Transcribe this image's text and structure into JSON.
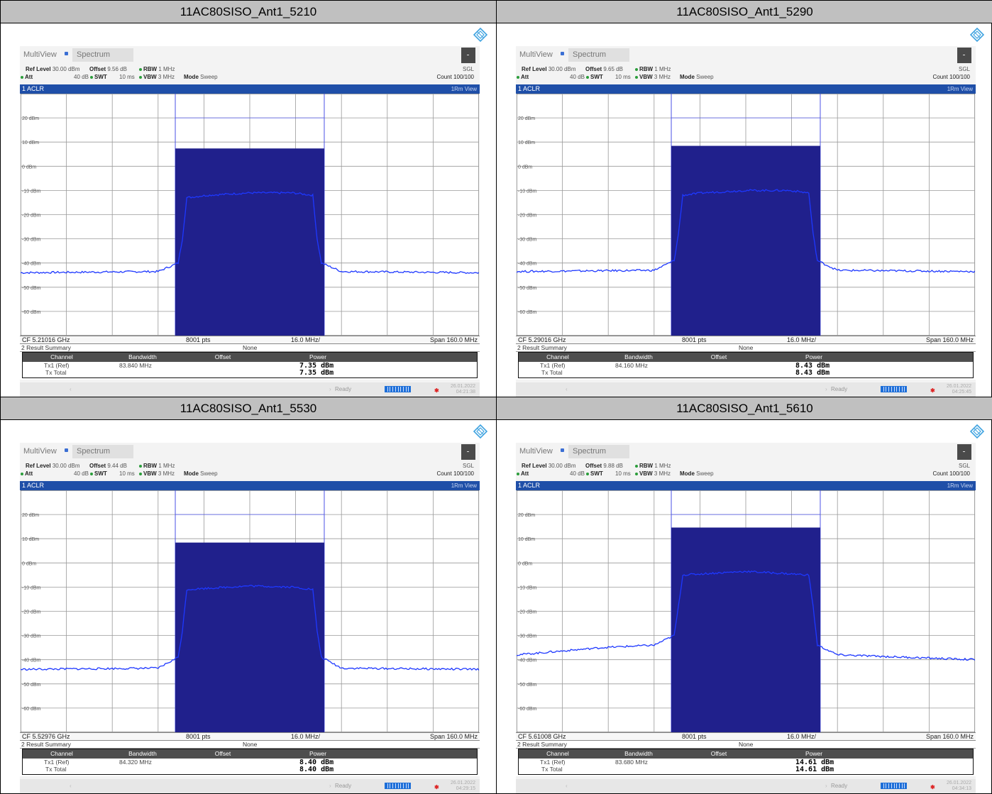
{
  "panels": [
    {
      "title": "11AC80SISO_Ant1_5210",
      "app": {
        "multiview": "MultiView",
        "tab": "Spectrum"
      },
      "settings": {
        "ref_level_label": "Ref Level",
        "ref_level": "30.00 dBm",
        "offset_label": "Offset",
        "offset": "9.56 dB",
        "rbw_label": "RBW",
        "rbw": "1 MHz",
        "att_label": "Att",
        "att": "40 dB",
        "swt_label": "SWT",
        "swt": "10 ms",
        "vbw_label": "VBW",
        "vbw": "3 MHz",
        "mode_label": "Mode",
        "mode": "Sweep",
        "sgl": "SGL",
        "count": "Count 100/100"
      },
      "window": {
        "name": "1 ACLR",
        "view": "1Rm View"
      },
      "axis": {
        "cf": "CF 5.21016 GHz",
        "pts": "8001 pts",
        "div": "16.0 MHz/",
        "span": "Span 160.0 MHz"
      },
      "summary": {
        "title": "2 Result Summary",
        "none": "None",
        "headers": [
          "Channel",
          "Bandwidth",
          "Offset",
          "Power"
        ],
        "rows": [
          {
            "channel": "Tx1 (Ref)",
            "bandwidth": "83.840 MHz",
            "power": "7.35 dBm"
          },
          {
            "channel": "Tx Total",
            "bandwidth": "",
            "power": "7.35 dBm"
          }
        ]
      },
      "status": {
        "ready": "Ready",
        "date": "26.01.2022",
        "time": "04:21:38"
      },
      "chart_data": {
        "type": "line",
        "ylabels": [
          "20 dBm",
          "10 dBm",
          "0 dBm",
          "-10 dBm",
          "-20 dBm",
          "-30 dBm",
          "-40 dBm",
          "-50 dBm",
          "-60 dBm"
        ],
        "ylim": [
          -70,
          30
        ],
        "channel_power_dbm": 7.35,
        "series": [
          {
            "x_mhz": [
              -80,
              -32,
              -25,
              -23.5,
              -22,
              -15,
              0,
              15,
              22,
              23.5,
              25,
              32,
              80
            ],
            "y_dbm": [
              -44,
              -43.5,
              -40,
              -30,
              -13,
              -12,
              -11,
              -11,
              -12,
              -30,
              -40,
              -43.5,
              -44
            ]
          }
        ]
      }
    },
    {
      "title": "11AC80SISO_Ant1_5290",
      "app": {
        "multiview": "MultiView",
        "tab": "Spectrum"
      },
      "settings": {
        "ref_level_label": "Ref Level",
        "ref_level": "30.00 dBm",
        "offset_label": "Offset",
        "offset": "9.65 dB",
        "rbw_label": "RBW",
        "rbw": "1 MHz",
        "att_label": "Att",
        "att": "40 dB",
        "swt_label": "SWT",
        "swt": "10 ms",
        "vbw_label": "VBW",
        "vbw": "3 MHz",
        "mode_label": "Mode",
        "mode": "Sweep",
        "sgl": "SGL",
        "count": "Count 100/100"
      },
      "window": {
        "name": "1 ACLR",
        "view": "1Rm View"
      },
      "axis": {
        "cf": "CF 5.29016 GHz",
        "pts": "8001 pts",
        "div": "16.0 MHz/",
        "span": "Span 160.0 MHz"
      },
      "summary": {
        "title": "2 Result Summary",
        "none": "None",
        "headers": [
          "Channel",
          "Bandwidth",
          "Offset",
          "Power"
        ],
        "rows": [
          {
            "channel": "Tx1 (Ref)",
            "bandwidth": "84.160 MHz",
            "power": "8.43 dBm"
          },
          {
            "channel": "Tx Total",
            "bandwidth": "",
            "power": "8.43 dBm"
          }
        ]
      },
      "status": {
        "ready": "Ready",
        "date": "26.01.2022",
        "time": "04:25:45"
      },
      "chart_data": {
        "type": "line",
        "ylabels": [
          "20 dBm",
          "10 dBm",
          "0 dBm",
          "-10 dBm",
          "-20 dBm",
          "-30 dBm",
          "-40 dBm",
          "-50 dBm",
          "-60 dBm"
        ],
        "ylim": [
          -70,
          30
        ],
        "channel_power_dbm": 8.43,
        "series": [
          {
            "x_mhz": [
              -80,
              -32,
              -25,
              -23.5,
              -22,
              -15,
              0,
              15,
              22,
              23.5,
              25,
              32,
              80
            ],
            "y_dbm": [
              -43.5,
              -43,
              -39,
              -28,
              -12,
              -11,
              -10,
              -10,
              -11,
              -28,
              -39,
              -43,
              -43.5
            ]
          }
        ]
      }
    },
    {
      "title": "11AC80SISO_Ant1_5530",
      "app": {
        "multiview": "MultiView",
        "tab": "Spectrum"
      },
      "settings": {
        "ref_level_label": "Ref Level",
        "ref_level": "30.00 dBm",
        "offset_label": "Offset",
        "offset": "9.44 dB",
        "rbw_label": "RBW",
        "rbw": "1 MHz",
        "att_label": "Att",
        "att": "40 dB",
        "swt_label": "SWT",
        "swt": "10 ms",
        "vbw_label": "VBW",
        "vbw": "3 MHz",
        "mode_label": "Mode",
        "mode": "Sweep",
        "sgl": "SGL",
        "count": "Count 100/100"
      },
      "window": {
        "name": "1 ACLR",
        "view": "1Rm View"
      },
      "axis": {
        "cf": "CF 5.52976 GHz",
        "pts": "8001 pts",
        "div": "16.0 MHz/",
        "span": "Span 160.0 MHz"
      },
      "summary": {
        "title": "2 Result Summary",
        "none": "None",
        "headers": [
          "Channel",
          "Bandwidth",
          "Offset",
          "Power"
        ],
        "rows": [
          {
            "channel": "Tx1 (Ref)",
            "bandwidth": "84.320 MHz",
            "power": "8.40 dBm"
          },
          {
            "channel": "Tx Total",
            "bandwidth": "",
            "power": "8.40 dBm"
          }
        ]
      },
      "status": {
        "ready": "Ready",
        "date": "26.01.2022",
        "time": "04:29:15"
      },
      "chart_data": {
        "type": "line",
        "ylabels": [
          "20 dBm",
          "10 dBm",
          "0 dBm",
          "-10 dBm",
          "-20 dBm",
          "-30 dBm",
          "-40 dBm",
          "-50 dBm",
          "-60 dBm"
        ],
        "ylim": [
          -70,
          30
        ],
        "channel_power_dbm": 8.4,
        "series": [
          {
            "x_mhz": [
              -80,
              -32,
              -25,
              -23.5,
              -22,
              -15,
              0,
              15,
              22,
              23.5,
              25,
              32,
              80
            ],
            "y_dbm": [
              -44,
              -43.5,
              -39,
              -28,
              -11,
              -10.5,
              -9.5,
              -10,
              -11,
              -28,
              -39,
              -43.5,
              -44
            ]
          }
        ]
      }
    },
    {
      "title": "11AC80SISO_Ant1_5610",
      "app": {
        "multiview": "MultiView",
        "tab": "Spectrum"
      },
      "settings": {
        "ref_level_label": "Ref Level",
        "ref_level": "30.00 dBm",
        "offset_label": "Offset",
        "offset": "9.88 dB",
        "rbw_label": "RBW",
        "rbw": "1 MHz",
        "att_label": "Att",
        "att": "40 dB",
        "swt_label": "SWT",
        "swt": "10 ms",
        "vbw_label": "VBW",
        "vbw": "3 MHz",
        "mode_label": "Mode",
        "mode": "Sweep",
        "sgl": "SGL",
        "count": "Count 100/100"
      },
      "window": {
        "name": "1 ACLR",
        "view": "1Rm View"
      },
      "axis": {
        "cf": "CF 5.61008 GHz",
        "pts": "8001 pts",
        "div": "16.0 MHz/",
        "span": "Span 160.0 MHz"
      },
      "summary": {
        "title": "2 Result Summary",
        "none": "None",
        "headers": [
          "Channel",
          "Bandwidth",
          "Offset",
          "Power"
        ],
        "rows": [
          {
            "channel": "Tx1 (Ref)",
            "bandwidth": "83.680 MHz",
            "power": "14.61 dBm"
          },
          {
            "channel": "Tx Total",
            "bandwidth": "",
            "power": "14.61 dBm"
          }
        ]
      },
      "status": {
        "ready": "Ready",
        "date": "26.01.2022",
        "time": "04:34:13"
      },
      "chart_data": {
        "type": "line",
        "ylabels": [
          "20 dBm",
          "10 dBm",
          "0 dBm",
          "-10 dBm",
          "-20 dBm",
          "-30 dBm",
          "-40 dBm",
          "-50 dBm",
          "-60 dBm"
        ],
        "ylim": [
          -70,
          30
        ],
        "channel_power_dbm": 14.61,
        "series": [
          {
            "x_mhz": [
              -80,
              -50,
              -32,
              -25,
              -23.5,
              -22,
              -15,
              0,
              15,
              22,
              23.5,
              25,
              32,
              80
            ],
            "y_dbm": [
              -38,
              -35,
              -34,
              -30,
              -18,
              -5,
              -4.5,
              -3.5,
              -4.5,
              -5,
              -18,
              -34,
              -38,
              -40
            ]
          }
        ]
      }
    }
  ],
  "colors": {
    "trace": "#1e38ff",
    "fill": "#20208c",
    "limit": "#4a52e6",
    "header": "#1f4fa8",
    "titlebar": "#c0c0c0"
  },
  "icons": {
    "logo": "rohde-schwarz-logo",
    "menu": "menu-icon"
  }
}
